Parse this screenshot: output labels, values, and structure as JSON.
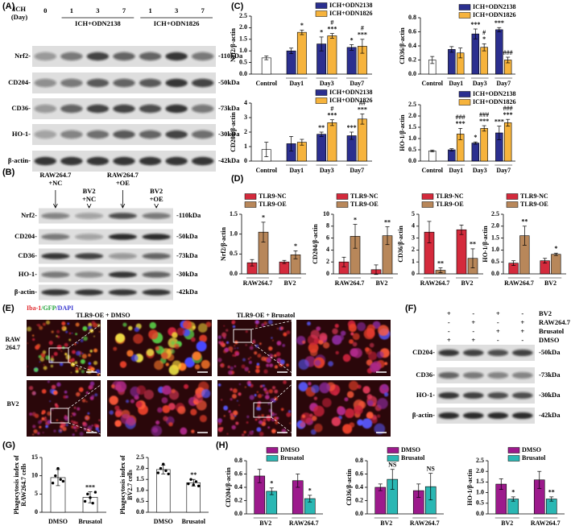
{
  "panel_labels": [
    "(A)",
    "(B)",
    "(C)",
    "(D)",
    "(E)",
    "(F)",
    "(G)",
    "(H)"
  ],
  "blot_a": {
    "header": [
      "ICH",
      "(Day)"
    ],
    "lanes": [
      "0",
      "1",
      "3",
      "7",
      "1",
      "3",
      "7"
    ],
    "groups": [
      "ICH+ODN2138",
      "ICH+ODN1826"
    ],
    "rows": [
      {
        "label": "Nrf2-",
        "kda": "-110kDa"
      },
      {
        "label": "CD204-",
        "kda": "-50kDa"
      },
      {
        "label": "CD36-",
        "kda": "-73kDa"
      },
      {
        "label": "HO-1-",
        "kda": "-30kDa"
      },
      {
        "label": "β-actin-",
        "kda": "-42kDa"
      }
    ]
  },
  "blot_b": {
    "lanes": [
      [
        "RAW264.7",
        "+NC"
      ],
      [
        "BV2",
        "+NC"
      ],
      [
        "RAW264.7",
        "+OE"
      ],
      [
        "BV2",
        "+OE"
      ]
    ],
    "rows": [
      {
        "label": "Nrf2-",
        "kda": "-110kDa"
      },
      {
        "label": "CD204-",
        "kda": "-50kDa"
      },
      {
        "label": "CD36-",
        "kda": "-73kDa"
      },
      {
        "label": "HO-1-",
        "kda": "-30kDa"
      },
      {
        "label": "β-actin-",
        "kda": "-42kDa"
      }
    ]
  },
  "image_panel": {
    "stain": [
      {
        "text": "Iba-1",
        "color": "#e0282c"
      },
      {
        "text": "/GFP",
        "color": "#22a33a"
      },
      {
        "text": "/DAPI",
        "color": "#3a3ad0"
      }
    ],
    "conditions": [
      "TLR9-OE + DMSO",
      "TLR9-OE + Brusatol"
    ],
    "rows": [
      [
        "RAW",
        "264.7"
      ],
      [
        "BV2"
      ]
    ]
  },
  "blot_f": {
    "treatments": [
      {
        "name": "BV2",
        "signs": [
          "+",
          "-",
          "+",
          "-"
        ]
      },
      {
        "name": "RAW264.7",
        "signs": [
          "-",
          "+",
          "-",
          "+"
        ]
      },
      {
        "name": "Brusatol",
        "signs": [
          "-",
          "-",
          "+",
          "+"
        ]
      },
      {
        "name": "DMSO",
        "signs": [
          "+",
          "+",
          "-",
          "-"
        ]
      }
    ],
    "rows": [
      {
        "label": "CD204-",
        "kda": "-50kDa"
      },
      {
        "label": "CD36-",
        "kda": "-73kDa"
      },
      {
        "label": "HO-1-",
        "kda": "-30kDa"
      },
      {
        "label": "β-actin-",
        "kda": "-42kDa"
      }
    ]
  },
  "chart_data": [
    {
      "type": "bar",
      "y_label": "Nrf2/β-actin",
      "categories": [
        "Control",
        "Day1",
        "Day3",
        "Day7"
      ],
      "control": {
        "value": 0.7,
        "error": 0.08,
        "color": "#ffffff"
      },
      "series": [
        {
          "name": "ICH+ODN2138",
          "color": "#2b2f8f",
          "values": [
            null,
            1.0,
            1.3,
            1.15
          ],
          "errors": [
            null,
            0.12,
            0.3,
            0.12
          ],
          "annotations": [
            null,
            null,
            [
              "*"
            ],
            [
              "*"
            ]
          ]
        },
        {
          "name": "ICH+ODN1826",
          "color": "#f6b33c",
          "values": [
            null,
            1.8,
            1.65,
            1.2
          ],
          "errors": [
            null,
            0.1,
            0.1,
            0.3
          ],
          "annotations": [
            null,
            [
              "*"
            ],
            [
              "#",
              "***"
            ],
            [
              "#",
              "***"
            ]
          ]
        }
      ],
      "ylim": [
        0,
        2.5
      ],
      "yticks": [
        {
          "value": 0,
          "label": "0.0"
        },
        0.5,
        {
          "value": 1,
          "label": "1.0"
        },
        1.5,
        {
          "value": 2,
          "label": "2.0"
        },
        2.5
      ],
      "legend": "upper right"
    },
    {
      "type": "bar",
      "y_label": "CD36/β-actin",
      "categories": [
        "Control",
        "Day1",
        "Day3",
        "Day7"
      ],
      "control": {
        "value": 0.2,
        "error": 0.05,
        "color": "#ffffff"
      },
      "series": [
        {
          "name": "ICH+ODN2138",
          "color": "#2b2f8f",
          "values": [
            null,
            0.35,
            0.57,
            0.63
          ],
          "errors": [
            null,
            0.04,
            0.07,
            0.03
          ],
          "annotations": [
            null,
            null,
            [
              "***"
            ],
            [
              "***"
            ]
          ]
        },
        {
          "name": "ICH+ODN1826",
          "color": "#f6b33c",
          "values": [
            null,
            0.3,
            0.38,
            0.2
          ],
          "errors": [
            null,
            0.07,
            0.05,
            0.04
          ],
          "annotations": [
            null,
            null,
            [
              "#",
              "*"
            ],
            [
              "###"
            ]
          ]
        }
      ],
      "ylim": [
        0,
        0.8
      ],
      "yticks": [
        {
          "value": 0,
          "label": "0.0"
        },
        0.2,
        0.4,
        0.6,
        0.8
      ],
      "legend": "upper right"
    },
    {
      "type": "bar",
      "y_label": "CD204/β-actin",
      "categories": [
        "Control",
        "Day1",
        "Day3",
        "Day7"
      ],
      "control": {
        "value": 0.8,
        "error": 0.5,
        "color": "#ffffff"
      },
      "series": [
        {
          "name": "ICH+ODN2138",
          "color": "#2b2f8f",
          "values": [
            null,
            1.2,
            1.85,
            1.75
          ],
          "errors": [
            null,
            0.5,
            0.15,
            0.25
          ],
          "annotations": [
            null,
            null,
            [
              "**"
            ],
            [
              "***"
            ]
          ]
        },
        {
          "name": "ICH+ODN1826",
          "color": "#f6b33c",
          "values": [
            null,
            1.3,
            2.65,
            2.9
          ],
          "errors": [
            null,
            0.2,
            0.2,
            0.35
          ],
          "annotations": [
            null,
            null,
            [
              "#",
              "***"
            ],
            [
              "##",
              "***"
            ]
          ]
        }
      ],
      "ylim": [
        0,
        4
      ],
      "yticks": [
        0,
        1,
        2,
        3,
        4
      ],
      "legend": "upper right"
    },
    {
      "type": "bar",
      "y_label": "HO-1/β-actin",
      "categories": [
        "Control",
        "Day1",
        "Day3",
        "Day7"
      ],
      "control": {
        "value": 0.45,
        "error": 0.04,
        "color": "#ffffff"
      },
      "series": [
        {
          "name": "ICH+ODN2138",
          "color": "#2b2f8f",
          "values": [
            null,
            0.5,
            0.8,
            1.25
          ],
          "errors": [
            null,
            0.05,
            0.05,
            0.3
          ],
          "annotations": [
            null,
            null,
            [
              "*"
            ],
            [
              "***"
            ]
          ]
        },
        {
          "name": "ICH+ODN1826",
          "color": "#f6b33c",
          "values": [
            null,
            1.2,
            1.45,
            1.7
          ],
          "errors": [
            null,
            0.25,
            0.12,
            0.15
          ],
          "annotations": [
            null,
            [
              "###",
              "***"
            ],
            [
              "###",
              "***"
            ],
            [
              "###",
              "***"
            ]
          ]
        }
      ],
      "ylim": [
        0,
        2.5
      ],
      "yticks": [
        {
          "value": 0,
          "label": "0.0"
        },
        0.5,
        {
          "value": 1,
          "label": "1.0"
        },
        1.5,
        {
          "value": 2,
          "label": "2.0"
        },
        2.5
      ],
      "legend": "upper right"
    },
    {
      "type": "bar",
      "y_label": "Nrf2/β-actin",
      "categories": [
        "RAW264.7",
        "BV2"
      ],
      "series": [
        {
          "name": "TLR9-NC",
          "color": "#d42a3c",
          "values": [
            0.28,
            0.3
          ],
          "errors": [
            0.08,
            0.04
          ],
          "annotations": [
            null,
            null
          ]
        },
        {
          "name": "TLR9-OE",
          "color": "#b8875a",
          "values": [
            1.05,
            0.48
          ],
          "errors": [
            0.25,
            0.1
          ],
          "annotations": [
            [
              "*"
            ],
            [
              "*"
            ]
          ]
        }
      ],
      "ylim": [
        0,
        1.5
      ],
      "yticks": [
        {
          "value": 0,
          "label": "0.0"
        },
        0.5,
        {
          "value": 1,
          "label": "1.0"
        },
        1.5
      ],
      "legend": "upper left"
    },
    {
      "type": "bar",
      "y_label": "CD204/β-actin",
      "categories": [
        "RAW264.7",
        "BV2"
      ],
      "series": [
        {
          "name": "TLR9-NC",
          "color": "#d42a3c",
          "values": [
            2.0,
            0.7
          ],
          "errors": [
            0.8,
            0.8
          ],
          "annotations": [
            null,
            null
          ]
        },
        {
          "name": "TLR9-OE",
          "color": "#b8875a",
          "values": [
            6.3,
            6.4
          ],
          "errors": [
            2.0,
            1.5
          ],
          "annotations": [
            [
              "*"
            ],
            [
              "**"
            ]
          ]
        }
      ],
      "ylim": [
        0,
        10
      ],
      "yticks": [
        0,
        2,
        4,
        6,
        8,
        10
      ],
      "legend": "upper left"
    },
    {
      "type": "bar",
      "y_label": "CD36/β-actin",
      "categories": [
        "RAW264.7",
        "BV2"
      ],
      "series": [
        {
          "name": "TLR9-NC",
          "color": "#d42a3c",
          "values": [
            3.5,
            3.7
          ],
          "errors": [
            0.9,
            0.4
          ],
          "annotations": [
            null,
            null
          ]
        },
        {
          "name": "TLR9-OE",
          "color": "#b8875a",
          "values": [
            0.3,
            1.3
          ],
          "errors": [
            0.2,
            0.8
          ],
          "annotations": [
            [
              "**"
            ],
            [
              "**"
            ]
          ]
        }
      ],
      "ylim": [
        0,
        5
      ],
      "yticks": [
        0,
        1,
        2,
        3,
        4,
        5
      ],
      "legend": "upper left"
    },
    {
      "type": "bar",
      "y_label": "HO-1/β-actin",
      "categories": [
        "RAW264.7",
        "BV2"
      ],
      "series": [
        {
          "name": "TLR9-NC",
          "color": "#d42a3c",
          "values": [
            0.45,
            0.55
          ],
          "errors": [
            0.1,
            0.1
          ],
          "annotations": [
            null,
            null
          ]
        },
        {
          "name": "TLR9-OE",
          "color": "#b8875a",
          "values": [
            1.6,
            0.82
          ],
          "errors": [
            0.4,
            0.05
          ],
          "annotations": [
            [
              "**"
            ],
            [
              "*"
            ]
          ]
        }
      ],
      "ylim": [
        0,
        2.5
      ],
      "yticks": [
        {
          "value": 0,
          "label": "0.0"
        },
        0.5,
        {
          "value": 1,
          "label": "1.0"
        },
        1.5,
        {
          "value": 2,
          "label": "2.0"
        },
        2.5
      ],
      "legend": "upper left"
    },
    {
      "type": "bar",
      "y_label": [
        "Phagocytosis index of",
        "RAW264.7 cells"
      ],
      "categories": [
        "DMSO",
        "Brusatol"
      ],
      "color": "#ffffff",
      "values": [
        9.5,
        4.1
      ],
      "errors": [
        2.2,
        1.5
      ],
      "annotations": [
        null,
        [
          "***"
        ]
      ],
      "points": [
        [
          8,
          10,
          12,
          9,
          8.5
        ],
        [
          3,
          5,
          4,
          2.5,
          5.5
        ]
      ],
      "ylim": [
        0,
        15
      ],
      "yticks": [
        0,
        5,
        10,
        15
      ]
    },
    {
      "type": "bar",
      "y_label": [
        "Phagocytosis index of",
        "BV2.7 cells"
      ],
      "categories": [
        "DMSO",
        "Brusatol"
      ],
      "color": "#ffffff",
      "values": [
        1.95,
        1.35
      ],
      "errors": [
        0.2,
        0.15
      ],
      "annotations": [
        null,
        [
          "**"
        ]
      ],
      "points": [
        [
          1.8,
          2.0,
          2.2,
          1.9,
          1.75
        ],
        [
          1.3,
          1.5,
          1.25,
          1.4,
          1.2
        ]
      ],
      "ylim": [
        0,
        2.5
      ],
      "yticks": [
        {
          "value": 0,
          "label": "0.0"
        },
        0.5,
        {
          "value": 1,
          "label": "1.0"
        },
        1.5,
        {
          "value": 2,
          "label": "2.0"
        },
        2.5
      ]
    },
    {
      "type": "bar",
      "y_label": "CD204/β-actin",
      "categories": [
        "BV2",
        "RAW264.7"
      ],
      "series": [
        {
          "name": "DMSO",
          "color": "#9c1a8c",
          "values": [
            0.57,
            0.5
          ],
          "errors": [
            0.1,
            0.1
          ],
          "annotations": [
            null,
            null
          ]
        },
        {
          "name": "Brusatol",
          "color": "#2ab7b3",
          "values": [
            0.34,
            0.23
          ],
          "errors": [
            0.05,
            0.05
          ],
          "annotations": [
            [
              "*"
            ],
            [
              "*"
            ]
          ]
        }
      ],
      "ylim": [
        0,
        0.8
      ],
      "yticks": [
        {
          "value": 0,
          "label": "0.0"
        },
        0.2,
        0.4,
        0.6,
        0.8
      ],
      "legend": "upper right"
    },
    {
      "type": "bar",
      "y_label": "CD36/β-actin",
      "categories": [
        "BV2",
        "RAW264.7"
      ],
      "series": [
        {
          "name": "DMSO",
          "color": "#9c1a8c",
          "values": [
            0.4,
            0.35
          ],
          "errors": [
            0.05,
            0.1
          ],
          "annotations": [
            null,
            null
          ]
        },
        {
          "name": "Brusatol",
          "color": "#2ab7b3",
          "values": [
            0.52,
            0.41
          ],
          "errors": [
            0.15,
            0.2
          ],
          "annotations": [
            [
              "NS"
            ],
            [
              "NS"
            ]
          ]
        }
      ],
      "ylim": [
        0,
        0.8
      ],
      "yticks": [
        {
          "value": 0,
          "label": "0.0"
        },
        0.2,
        0.4,
        0.6,
        0.8
      ],
      "legend": "upper right"
    },
    {
      "type": "bar",
      "y_label": "HO-1/β-actin",
      "categories": [
        "BV2",
        "RAW264.7"
      ],
      "series": [
        {
          "name": "DMSO",
          "color": "#9c1a8c",
          "values": [
            1.4,
            1.6
          ],
          "errors": [
            0.25,
            0.4
          ],
          "annotations": [
            null,
            null
          ]
        },
        {
          "name": "Brusatol",
          "color": "#2ab7b3",
          "values": [
            0.7,
            0.7
          ],
          "errors": [
            0.1,
            0.1
          ],
          "annotations": [
            [
              "*"
            ],
            [
              "**"
            ]
          ]
        }
      ],
      "ylim": [
        0,
        2.5
      ],
      "yticks": [
        {
          "value": 0,
          "label": "0.0"
        },
        0.5,
        {
          "value": 1,
          "label": "1.0"
        },
        1.5,
        {
          "value": 2,
          "label": "2.0"
        },
        2.5
      ],
      "legend": "upper right"
    }
  ]
}
